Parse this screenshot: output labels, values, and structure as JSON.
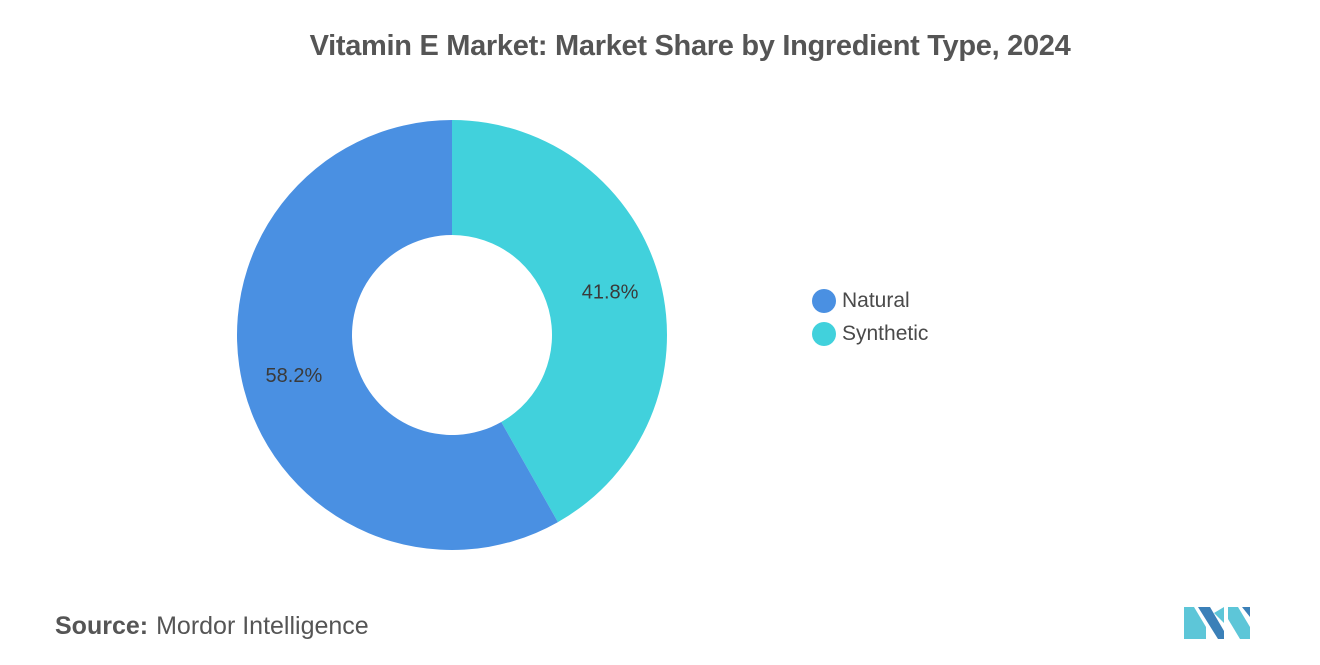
{
  "chart_data": {
    "type": "pie",
    "title": "Vitamin E Market: Market Share by Ingredient Type, 2024",
    "categories": [
      "Natural",
      "Synthetic"
    ],
    "values": [
      58.2,
      41.8
    ],
    "value_labels": [
      "58.2%",
      "41.8%"
    ],
    "colors": [
      "#4A90E2",
      "#41D1DC"
    ],
    "legend_placement": "right",
    "donut": true
  },
  "legend": {
    "items": [
      {
        "label": "Natural",
        "color": "#4A90E2"
      },
      {
        "label": "Synthetic",
        "color": "#41D1DC"
      }
    ]
  },
  "source": {
    "label": "Source:",
    "text": "Mordor Intelligence"
  },
  "logo": {
    "icon": "mordor-intelligence-logo-icon",
    "colors": [
      "#5DC6D8",
      "#3B80B8"
    ]
  }
}
